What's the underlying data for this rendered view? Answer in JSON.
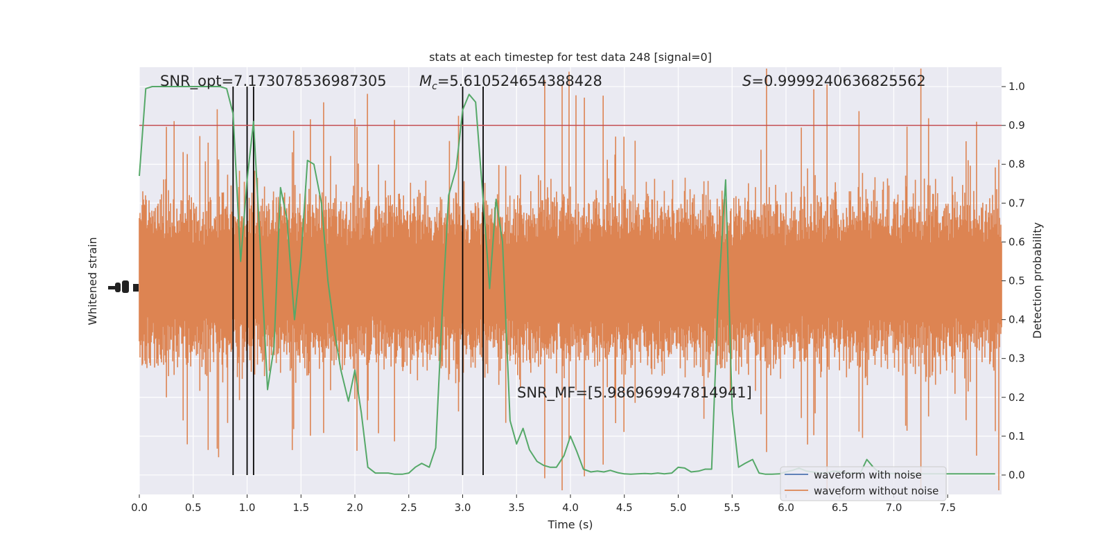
{
  "chart_data": {
    "type": "line",
    "title": "stats at each timestep for test data 248 [signal=0]",
    "xlabel": "Time (s)",
    "ylabel_left": "Whitened strain",
    "ylabel_right": "Detection probability",
    "xlim": [
      0.0,
      8.0
    ],
    "ylim_right": [
      -0.05,
      1.05
    ],
    "xticks": [
      "0.0",
      "0.5",
      "1.0",
      "1.5",
      "2.0",
      "2.5",
      "3.0",
      "3.5",
      "4.0",
      "4.5",
      "5.0",
      "5.5",
      "6.0",
      "6.5",
      "7.0",
      "7.5"
    ],
    "yticks_right": [
      "0.0",
      "0.1",
      "0.2",
      "0.3",
      "0.4",
      "0.5",
      "0.6",
      "0.7",
      "0.8",
      "0.9",
      "1.0"
    ],
    "grid": true,
    "legend_position": "lower-right",
    "annotations": {
      "snr_opt": "SNR_opt=7.173078536987305",
      "mc_symbol": "M",
      "mc_sub": "c",
      "mc_value": "=5.610524654388428",
      "s_symbol": "S",
      "s_value": "=0.9999240636825562",
      "snr_mf": "SNR_MF=[5.986969947814941]"
    },
    "threshold": 0.9,
    "vertical_lines_x": [
      0.87,
      1.0,
      1.06,
      3.0,
      3.19
    ],
    "series": [
      {
        "name": "waveform with noise",
        "color": "#4c72b0"
      },
      {
        "name": "waveform without noise",
        "color": "#dd8452"
      }
    ],
    "probability_color": "#55a868",
    "threshold_color": "#c44e52",
    "probability": {
      "x": [
        0.0,
        0.06,
        0.12,
        0.19,
        0.25,
        0.31,
        0.37,
        0.44,
        0.5,
        0.56,
        0.62,
        0.69,
        0.75,
        0.81,
        0.87,
        0.94,
        1.0,
        1.06,
        1.12,
        1.19,
        1.25,
        1.31,
        1.37,
        1.44,
        1.5,
        1.56,
        1.62,
        1.69,
        1.75,
        1.81,
        1.87,
        1.94,
        2.0,
        2.06,
        2.12,
        2.19,
        2.25,
        2.31,
        2.37,
        2.44,
        2.5,
        2.56,
        2.62,
        2.69,
        2.75,
        2.81,
        2.87,
        2.94,
        3.0,
        3.06,
        3.12,
        3.19,
        3.25,
        3.31,
        3.37,
        3.44,
        3.5,
        3.56,
        3.62,
        3.69,
        3.75,
        3.81,
        3.87,
        3.94,
        4.0,
        4.06,
        4.12,
        4.19,
        4.25,
        4.31,
        4.37,
        4.44,
        4.5,
        4.56,
        4.62,
        4.69,
        4.75,
        4.81,
        4.87,
        4.94,
        5.0,
        5.06,
        5.12,
        5.19,
        5.25,
        5.31,
        5.37,
        5.44,
        5.5,
        5.56,
        5.62,
        5.69,
        5.75,
        5.81,
        5.87,
        5.94,
        6.0,
        6.06,
        6.12,
        6.19,
        6.25,
        6.31,
        6.37,
        6.44,
        6.5,
        6.56,
        6.62,
        6.69,
        6.75,
        6.81,
        6.87,
        6.94,
        7.0,
        7.06,
        7.12,
        7.19,
        7.25,
        7.31,
        7.37,
        7.44,
        7.5,
        7.56,
        7.62,
        7.69,
        7.75,
        7.81,
        7.87,
        7.94
      ],
      "y": [
        0.77,
        0.995,
        1.0,
        1.0,
        1.0,
        1.0,
        1.0,
        1.0,
        1.0,
        1.0,
        1.0,
        1.0,
        1.0,
        0.995,
        0.93,
        0.55,
        0.76,
        0.91,
        0.6,
        0.22,
        0.33,
        0.74,
        0.66,
        0.4,
        0.56,
        0.81,
        0.8,
        0.7,
        0.5,
        0.37,
        0.27,
        0.19,
        0.27,
        0.16,
        0.02,
        0.005,
        0.005,
        0.005,
        0.002,
        0.002,
        0.005,
        0.02,
        0.03,
        0.02,
        0.07,
        0.42,
        0.72,
        0.79,
        0.94,
        0.98,
        0.96,
        0.71,
        0.48,
        0.71,
        0.6,
        0.14,
        0.08,
        0.12,
        0.065,
        0.035,
        0.025,
        0.02,
        0.02,
        0.05,
        0.1,
        0.06,
        0.015,
        0.008,
        0.01,
        0.008,
        0.012,
        0.006,
        0.003,
        0.002,
        0.003,
        0.004,
        0.003,
        0.005,
        0.003,
        0.005,
        0.02,
        0.018,
        0.008,
        0.01,
        0.015,
        0.015,
        0.45,
        0.76,
        0.17,
        0.02,
        0.03,
        0.04,
        0.005,
        0.002,
        0.002,
        0.003,
        0.008,
        0.012,
        0.018,
        0.01,
        0.008,
        0.005,
        0.005,
        0.01,
        0.008,
        0.005,
        0.005,
        0.005,
        0.04,
        0.02,
        0.005,
        0.004,
        0.004,
        0.003,
        0.004,
        0.003,
        0.003,
        0.003,
        0.003,
        0.003,
        0.003,
        0.003,
        0.003,
        0.003,
        0.003,
        0.003,
        0.003,
        0.003
      ]
    }
  }
}
